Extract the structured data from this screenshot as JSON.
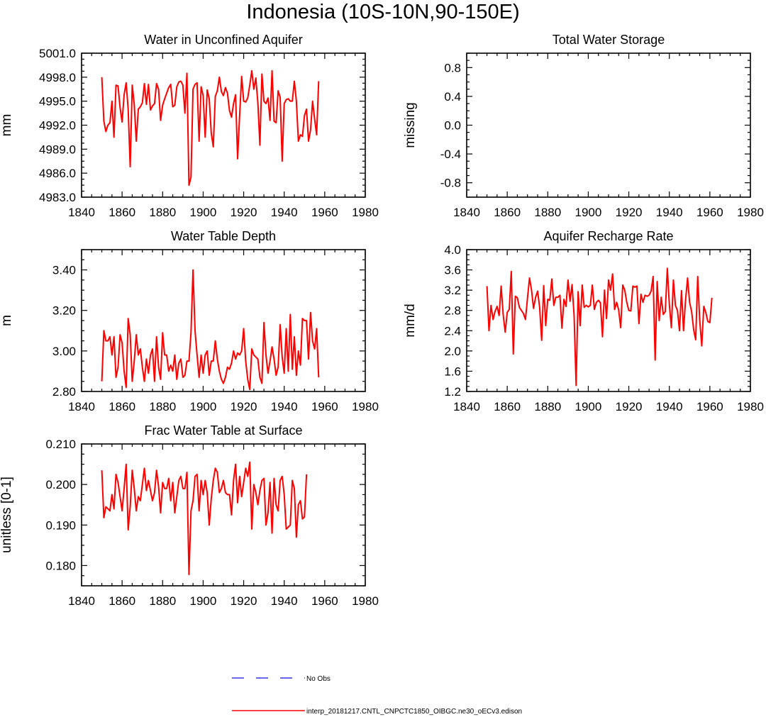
{
  "title": "Indonesia (10S-10N,90-150E)",
  "legend": {
    "obs_label": "No Obs",
    "model_label": "interp_20181217.CNTL_CNPCTC1850_OIBGC.ne30_oECv3.edison",
    "obs_color": "#3333ee",
    "model_color": "#ff0000"
  },
  "chart_data": [
    {
      "type": "line",
      "title": "Water in Unconfined Aquifer",
      "xlabel": "",
      "ylabel": "mm",
      "xlim": [
        1840,
        1980
      ],
      "ylim": [
        4983.0,
        5001.0
      ],
      "xticks": [
        1840,
        1860,
        1880,
        1900,
        1920,
        1940,
        1960,
        1980
      ],
      "yticks": [
        4983.0,
        4986.0,
        4989.0,
        4992.0,
        4995.0,
        4998.0,
        5001.0
      ],
      "ytick_labels": [
        "4983.0",
        "4986.0",
        "4989.0",
        "4992.0",
        "4995.0",
        "4998.0",
        "5001.0"
      ],
      "series": [
        {
          "name": "interp_20181217.CNTL_CNPCTC1850_OIBGC.ne30_oECv3.edison",
          "color": "#ff0000",
          "x_start": 1850,
          "x_step": 1,
          "values": [
            4998.0,
            4992.5,
            4991.2,
            4992.0,
            4992.3,
            4995.0,
            4990.5,
            4997.0,
            4996.9,
            4994.2,
            4992.4,
            4995.8,
            4997.3,
            4994.0,
            4986.8,
            4997.0,
            4994.6,
            4990.0,
            4994.0,
            4994.3,
            4994.8,
            4997.2,
            4994.6,
            4997.1,
            4993.9,
            4994.4,
            4994.7,
            4997.2,
            4996.5,
            4992.6,
            4994.5,
            4995.3,
            4996.0,
            4996.7,
            4997.1,
            4994.3,
            4994.5,
            4996.8,
            4997.4,
            4997.5,
            4997.0,
            4993.5,
            4998.5,
            4984.5,
            4985.5,
            4996.5,
            4997.1,
            4997.3,
            4990.0,
            4996.8,
            4995.7,
            4990.5,
            4996.4,
            4995.3,
            4991.0,
            4989.3,
            4995.6,
            4996.3,
            4998.0,
            4996.2,
            4995.7,
            4996.7,
            4996.0,
            4993.8,
            4993.0,
            4994.7,
            4995.8,
            4987.8,
            4993.2,
            4998.1,
            4995.0,
            4994.9,
            4995.4,
            4997.0,
            4998.8,
            4996.5,
            4997.9,
            4994.8,
            4989.5,
            4998.4,
            4995.0,
            4994.7,
            4995.4,
            4992.6,
            4998.8,
            4992.5,
            4992.3,
            4996.3,
            4995.5,
            4987.5,
            4994.7,
            4995.2,
            4995.3,
            4995.0,
            4995.0,
            4997.5,
            4995.0,
            4990.0,
            4990.8,
            4990.6,
            4993.2,
            4994.0,
            4990.0,
            4991.4,
            4995.0,
            4992.8,
            4990.8,
            4997.5
          ]
        }
      ]
    },
    {
      "type": "line",
      "title": "Total Water Storage",
      "xlabel": "",
      "ylabel": "missing",
      "xlim": [
        1840,
        1980
      ],
      "ylim": [
        -1.0,
        1.0
      ],
      "xticks": [
        1840,
        1860,
        1880,
        1900,
        1920,
        1940,
        1960,
        1980
      ],
      "yticks": [
        -0.8,
        -0.4,
        0.0,
        0.4,
        0.8
      ],
      "ytick_labels": [
        "-0.8",
        "-0.4",
        "0.0",
        "0.4",
        "0.8"
      ],
      "series": []
    },
    {
      "type": "line",
      "title": "Water Table Depth",
      "xlabel": "",
      "ylabel": "m",
      "xlim": [
        1840,
        1980
      ],
      "ylim": [
        2.8,
        3.5
      ],
      "xticks": [
        1840,
        1860,
        1880,
        1900,
        1920,
        1940,
        1960,
        1980
      ],
      "yticks": [
        2.8,
        3.0,
        3.2,
        3.4
      ],
      "ytick_labels": [
        "2.80",
        "3.00",
        "3.20",
        "3.40"
      ],
      "series": [
        {
          "name": "interp_20181217.CNTL_CNPCTC1850_OIBGC.ne30_oECv3.edison",
          "color": "#ff0000",
          "x_start": 1850,
          "x_step": 1,
          "values": [
            2.85,
            3.1,
            3.05,
            3.05,
            3.07,
            2.98,
            3.07,
            2.87,
            2.92,
            3.08,
            3.04,
            2.9,
            2.82,
            3.16,
            3.08,
            2.85,
            2.95,
            3.08,
            2.98,
            3.01,
            2.92,
            2.85,
            2.96,
            2.89,
            2.98,
            3.01,
            2.85,
            3.07,
            2.92,
            2.86,
            3.09,
            2.98,
            2.98,
            2.9,
            2.93,
            2.9,
            2.98,
            2.86,
            2.94,
            2.96,
            2.87,
            2.88,
            2.95,
            2.95,
            3.09,
            3.4,
            3.1,
            2.98,
            2.87,
            2.98,
            2.89,
            2.98,
            3.0,
            2.88,
            2.95,
            2.95,
            3.05,
            2.96,
            2.9,
            2.86,
            2.84,
            2.87,
            2.92,
            2.91,
            2.94,
            3.0,
            2.96,
            2.99,
            2.98,
            3.0,
            3.11,
            2.95,
            2.86,
            2.81,
            3.01,
            2.98,
            2.97,
            2.96,
            2.87,
            2.84,
            3.14,
            2.98,
            2.89,
            2.95,
            3.02,
            2.96,
            2.88,
            2.92,
            3.13,
            2.97,
            2.89,
            3.11,
            2.9,
            3.18,
            2.91,
            3.07,
            2.88,
            3.0,
            2.93,
            3.16,
            3.15,
            3.15,
            2.96,
            3.19,
            3.05,
            3.01,
            3.11,
            2.87
          ]
        }
      ]
    },
    {
      "type": "line",
      "title": "Aquifer Recharge Rate",
      "xlabel": "",
      "ylabel": "mm/d",
      "xlim": [
        1840,
        1980
      ],
      "ylim": [
        1.2,
        4.0
      ],
      "xticks": [
        1840,
        1860,
        1880,
        1900,
        1920,
        1940,
        1960,
        1980
      ],
      "yticks": [
        1.2,
        1.6,
        2.0,
        2.4,
        2.8,
        3.2,
        3.6,
        4.0
      ],
      "ytick_labels": [
        "1.2",
        "1.6",
        "2.0",
        "2.4",
        "2.8",
        "3.2",
        "3.6",
        "4.0"
      ],
      "series": [
        {
          "name": "interp_20181217.CNTL_CNPCTC1850_OIBGC.ne30_oECv3.edison",
          "color": "#ff0000",
          "x_start": 1850,
          "x_step": 1,
          "values": [
            3.28,
            2.4,
            2.9,
            2.62,
            2.78,
            2.88,
            2.7,
            3.28,
            2.72,
            2.37,
            2.76,
            2.82,
            3.57,
            1.94,
            3.08,
            3.05,
            2.86,
            2.8,
            2.74,
            2.62,
            3.04,
            3.44,
            3.2,
            2.84,
            3.06,
            3.18,
            2.86,
            2.21,
            3.29,
            2.5,
            3.02,
            3.0,
            3.42,
            2.9,
            3.06,
            3.06,
            3.1,
            2.45,
            3.02,
            2.88,
            3.4,
            2.98,
            3.31,
            2.7,
            1.32,
            3.17,
            2.5,
            3.3,
            2.86,
            2.9,
            2.87,
            2.9,
            3.3,
            2.82,
            2.96,
            3.0,
            2.95,
            2.28,
            3.2,
            2.64,
            3.4,
            3.2,
            3.52,
            2.82,
            2.96,
            2.81,
            2.46,
            3.3,
            3.2,
            2.96,
            2.8,
            2.79,
            3.28,
            3.26,
            3.28,
            2.54,
            3.12,
            2.96,
            3.1,
            3.08,
            3.1,
            3.18,
            3.47,
            1.82,
            3.37,
            2.6,
            3.06,
            2.72,
            2.78,
            3.63,
            2.92,
            2.46,
            3.4,
            2.9,
            2.8,
            2.4,
            3.19,
            2.4,
            3.0,
            3.44,
            2.96,
            2.78,
            2.42,
            2.22,
            3.47,
            2.6,
            2.1,
            2.88,
            2.76,
            2.58,
            2.56,
            3.05
          ]
        }
      ]
    },
    {
      "type": "line",
      "title": "Frac Water Table at Surface",
      "xlabel": "",
      "ylabel": "unitless [0-1]",
      "xlim": [
        1840,
        1980
      ],
      "ylim": [
        0.175,
        0.21
      ],
      "xticks": [
        1840,
        1860,
        1880,
        1900,
        1920,
        1940,
        1960,
        1980
      ],
      "yticks": [
        0.18,
        0.19,
        0.2,
        0.21
      ],
      "ytick_labels": [
        "0.180",
        "0.190",
        "0.200",
        "0.210"
      ],
      "series": [
        {
          "name": "interp_20181217.CNTL_CNPCTC1850_OIBGC.ne30_oECv3.edison",
          "color": "#ff0000",
          "x_start": 1850,
          "x_step": 1,
          "values": [
            0.2035,
            0.1918,
            0.1945,
            0.194,
            0.1935,
            0.1975,
            0.194,
            0.2025,
            0.2005,
            0.197,
            0.1935,
            0.199,
            0.205,
            0.1888,
            0.1945,
            0.2035,
            0.199,
            0.1935,
            0.197,
            0.196,
            0.2,
            0.204,
            0.1985,
            0.201,
            0.1985,
            0.196,
            0.198,
            0.2035,
            0.1995,
            0.193,
            0.2005,
            0.199,
            0.199,
            0.2015,
            0.196,
            0.2005,
            0.193,
            0.197,
            0.201,
            0.202,
            0.199,
            0.199,
            0.203,
            0.1778,
            0.1935,
            0.196,
            0.202,
            0.2025,
            0.1935,
            0.201,
            0.1975,
            0.201,
            0.198,
            0.19,
            0.1965,
            0.201,
            0.204,
            0.203,
            0.198,
            0.199,
            0.201,
            0.198,
            0.1975,
            0.1975,
            0.1925,
            0.201,
            0.205,
            0.1955,
            0.202,
            0.197,
            0.2005,
            0.204,
            0.202,
            0.2055,
            0.189,
            0.2,
            0.198,
            0.195,
            0.1985,
            0.201,
            0.2015,
            0.19,
            0.193,
            0.2005,
            0.188,
            0.2015,
            0.195,
            0.1935,
            0.201,
            0.202,
            0.1975,
            0.189,
            0.1895,
            0.19,
            0.201,
            0.199,
            0.187,
            0.195,
            0.196,
            0.1915,
            0.192,
            0.2025
          ]
        }
      ]
    }
  ]
}
